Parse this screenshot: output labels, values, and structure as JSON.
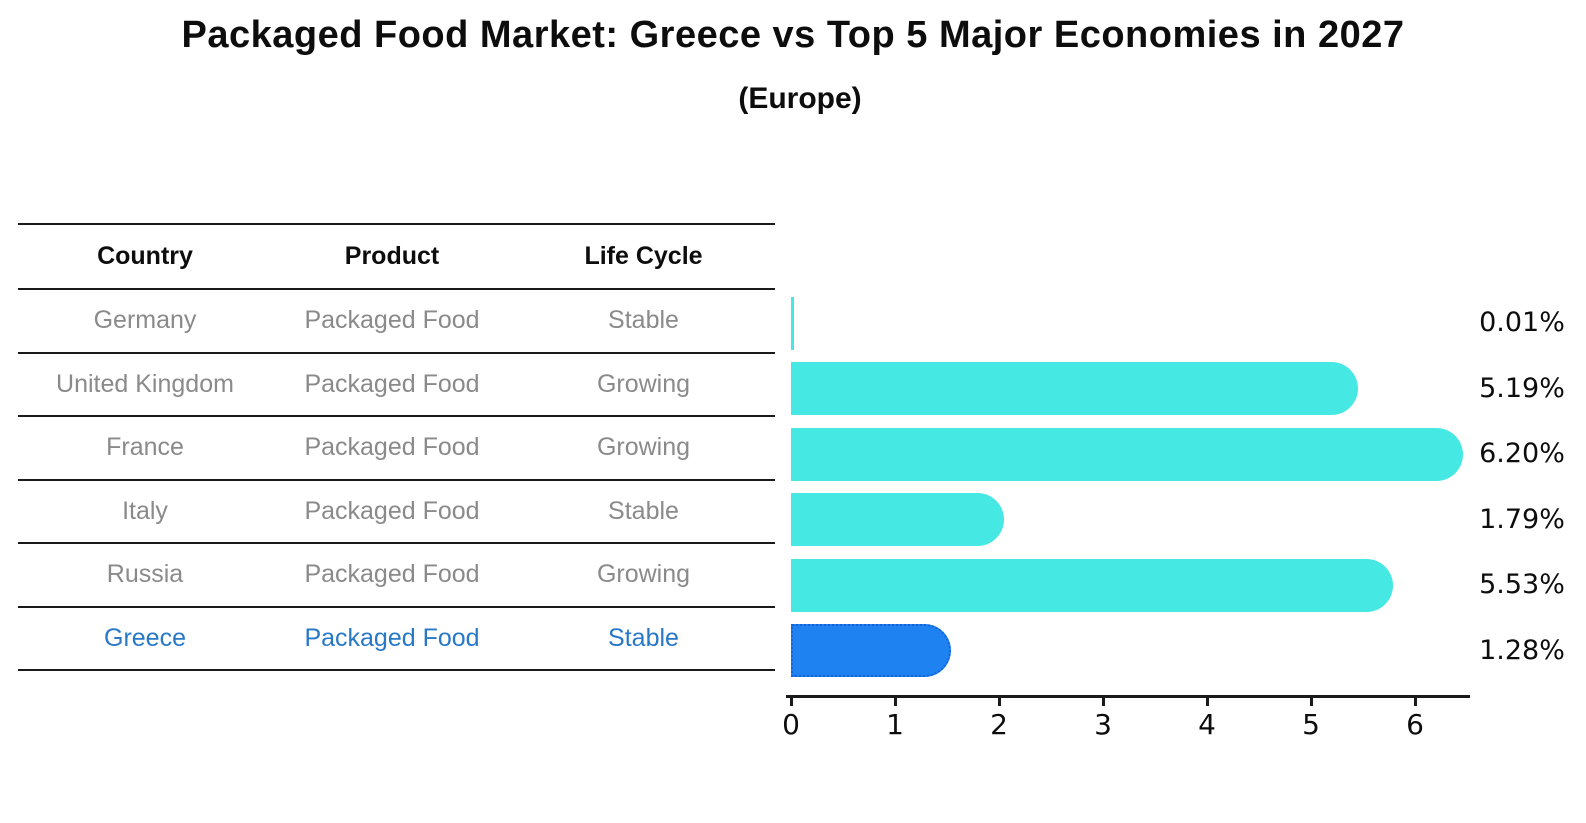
{
  "header": {
    "title": "Packaged Food Market: Greece vs Top 5 Major Economies in 2027",
    "subtitle": "(Europe)"
  },
  "table": {
    "headers": [
      "Country",
      "Product",
      "Life Cycle"
    ],
    "rows": [
      {
        "country": "Germany",
        "product": "Packaged Food",
        "life_cycle": "Stable",
        "highlight": false
      },
      {
        "country": "United Kingdom",
        "product": "Packaged Food",
        "life_cycle": "Growing",
        "highlight": false
      },
      {
        "country": "France",
        "product": "Packaged Food",
        "life_cycle": "Growing",
        "highlight": false
      },
      {
        "country": "Italy",
        "product": "Packaged Food",
        "life_cycle": "Stable",
        "highlight": false
      },
      {
        "country": "Russia",
        "product": "Packaged Food",
        "life_cycle": "Growing",
        "highlight": false
      },
      {
        "country": "Greece",
        "product": "Packaged Food",
        "life_cycle": "Stable",
        "highlight": true
      }
    ]
  },
  "chart_data": {
    "type": "bar",
    "orientation": "horizontal",
    "title": "Packaged Food Market: Greece vs Top 5 Major Economies in 2027",
    "subtitle": "(Europe)",
    "categories": [
      "Germany",
      "United Kingdom",
      "France",
      "Italy",
      "Russia",
      "Greece"
    ],
    "values": [
      0.01,
      5.19,
      6.2,
      1.79,
      5.53,
      1.28
    ],
    "value_labels": [
      "0.01%",
      "5.19%",
      "6.20%",
      "1.79%",
      "5.53%",
      "1.28%"
    ],
    "xlabel": "",
    "ylabel": "",
    "xticks": [
      "0",
      "1",
      "2",
      "3",
      "4",
      "5",
      "6"
    ],
    "xlim": [
      0,
      6.55
    ],
    "grid": false,
    "legend_position": "none",
    "bar_color": "#45e8e2",
    "highlight_index": 5,
    "highlight_color": "#1e82f0",
    "highlight_border_color": "#1464d8",
    "highlight_border_style": "dotted",
    "text_color_default": "#8a8a8a",
    "text_color_highlight": "#2878c8"
  }
}
